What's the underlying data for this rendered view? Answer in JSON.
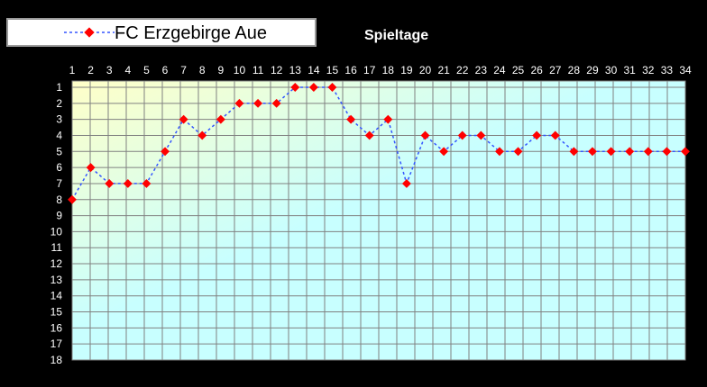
{
  "chart_data": {
    "type": "line",
    "title": "Spieltage",
    "x": [
      1,
      2,
      3,
      4,
      5,
      6,
      7,
      8,
      9,
      10,
      11,
      12,
      13,
      14,
      15,
      16,
      17,
      18,
      19,
      20,
      21,
      22,
      23,
      24,
      25,
      26,
      27,
      28,
      29,
      30,
      31,
      32,
      33,
      34
    ],
    "xlim": [
      1,
      34
    ],
    "ylim": [
      1,
      18
    ],
    "y_inverted": true,
    "grid": true,
    "legend_position": "top-left",
    "series": [
      {
        "name": "FC Erzgebirge Aue",
        "values": [
          8,
          6,
          7,
          7,
          7,
          5,
          3,
          4,
          3,
          2,
          2,
          2,
          1,
          1,
          1,
          3,
          4,
          3,
          7,
          4,
          5,
          4,
          4,
          5,
          5,
          4,
          4,
          5,
          5,
          5,
          5,
          5,
          5,
          5
        ],
        "line_color": "#3355ff",
        "marker_color": "#ff0000"
      }
    ]
  },
  "colors": {
    "background": "#000000",
    "gradient_yellow": "#ffffc8",
    "gradient_cyan": "#c8ffff",
    "grid": "#808080"
  }
}
